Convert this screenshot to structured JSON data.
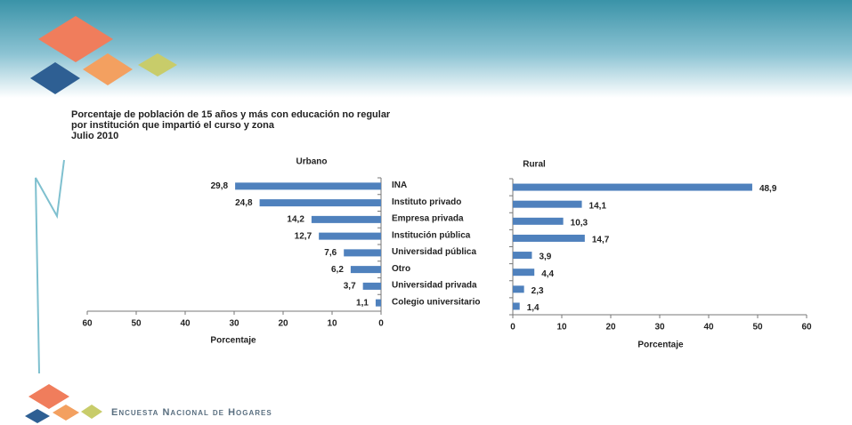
{
  "page": {
    "title_lines": [
      "Porcentaje de población de 15 años y más con educación no regular",
      "por institución que impartió el curso y zona",
      "Julio 2010"
    ],
    "footer": "Encuesta Nacional de Hogares"
  },
  "chart_data": [
    {
      "type": "bar",
      "orientation": "horizontal",
      "title": "Urbano",
      "categories": [
        "INA",
        "Instituto privado",
        "Empresa privada",
        "Institución pública",
        "Universidad pública",
        "Otro",
        "Universidad privada",
        "Colegio universitario"
      ],
      "values": [
        29.8,
        24.8,
        14.2,
        12.7,
        7.6,
        6.2,
        3.7,
        1.1
      ],
      "value_labels": [
        "29,8",
        "24,8",
        "14,2",
        "12,7",
        "7,6",
        "6,2",
        "3,7",
        "1,1"
      ],
      "color": "#4f81bd",
      "xlim": [
        60,
        0
      ],
      "xticks": [
        60,
        50,
        40,
        30,
        20,
        10,
        0
      ],
      "xlabel": "Porcentaje"
    },
    {
      "type": "bar",
      "orientation": "horizontal",
      "title": "Rural",
      "values": [
        48.9,
        14.1,
        10.3,
        14.7,
        3.9,
        4.4,
        2.3,
        1.4
      ],
      "value_labels": [
        "48,9",
        "14,1",
        "10,3",
        "14,7",
        "3,9",
        "4,4",
        "2,3",
        "1,4"
      ],
      "color": "#4f81bd",
      "xlim": [
        0,
        60
      ],
      "xticks": [
        0,
        10,
        20,
        30,
        40,
        50,
        60
      ],
      "xlabel": "Porcentaje"
    }
  ]
}
